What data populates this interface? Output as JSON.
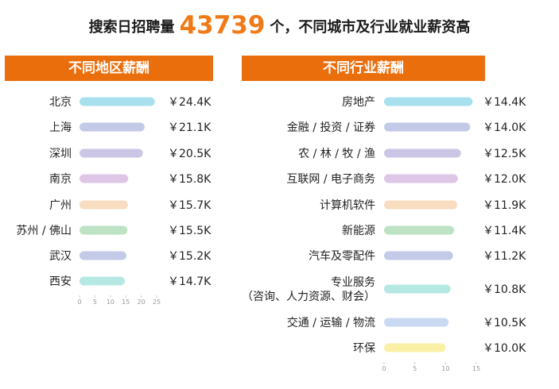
{
  "headline": {
    "prefix": "搜索日招聘量",
    "count": "43739",
    "suffix": "个，不同城市及行业就业薪资高"
  },
  "colors": {
    "accent": "#ea6e0c",
    "count_orange": "#f07a17"
  },
  "chart_data": [
    {
      "type": "bar",
      "orientation": "horizontal",
      "title": "不同地区薪酬",
      "categories": [
        "北京",
        "上海",
        "深圳",
        "南京",
        "广州",
        "苏州 / 佛山",
        "武汉",
        "西安"
      ],
      "values": [
        24.4,
        21.1,
        20.5,
        15.8,
        15.7,
        15.5,
        15.2,
        14.7
      ],
      "value_labels": [
        "￥24.4K",
        "￥21.1K",
        "￥20.5K",
        "￥15.8K",
        "￥15.7K",
        "￥15.5K",
        "￥15.2K",
        "￥14.7K"
      ],
      "colors": [
        "#a9e0ee",
        "#c3cae7",
        "#cbc6e6",
        "#ddc6e6",
        "#f8ddc0",
        "#bde3c4",
        "#c3cae7",
        "#b5e8e2"
      ],
      "xlim": [
        0,
        25
      ],
      "xticks": [
        0,
        5,
        10,
        15,
        20,
        25
      ],
      "grid": false
    },
    {
      "type": "bar",
      "orientation": "horizontal",
      "title": "不同行业薪酬",
      "categories": [
        "房地产",
        "金融 / 投资 / 证券",
        "农 / 林 / 牧 / 渔",
        "互联网 / 电子商务",
        "计算机软件",
        "新能源",
        "汽车及零配件",
        "专业服务\n（咨询、人力资源、财会）",
        "交通 / 运输 / 物流",
        "环保"
      ],
      "values": [
        14.4,
        14.0,
        12.5,
        12.0,
        11.9,
        11.4,
        11.2,
        10.8,
        10.5,
        10.0
      ],
      "value_labels": [
        "￥14.4K",
        "￥14.0K",
        "￥12.5K",
        "￥12.0K",
        "￥11.9K",
        "￥11.4K",
        "￥11.2K",
        "￥10.8K",
        "￥10.5K",
        "￥10.0K"
      ],
      "colors": [
        "#a9e0ee",
        "#c3cae7",
        "#cbc6e6",
        "#ddc6e6",
        "#f8ddc0",
        "#bde3c4",
        "#c3cae7",
        "#b5e8e2",
        "#cad9f2",
        "#f9f0a6"
      ],
      "xlim": [
        0,
        15
      ],
      "xticks": [
        0,
        5,
        10,
        15
      ],
      "grid": false
    }
  ]
}
